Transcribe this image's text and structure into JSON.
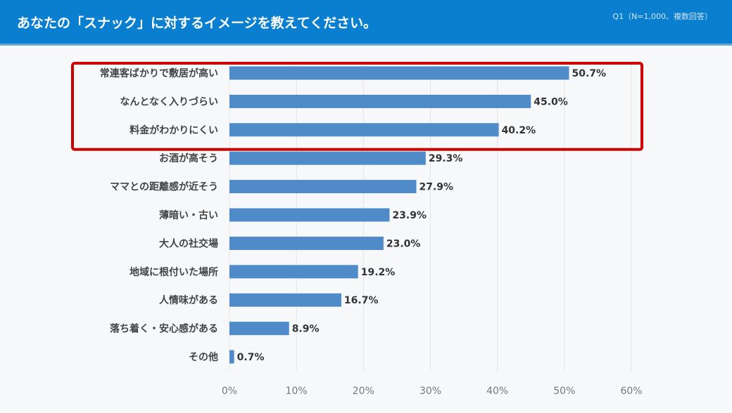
{
  "header": {
    "title": "あなたの「スナック」に対するイメージを教えてください。",
    "note": "Q1（N=1,000、複数回答）"
  },
  "chart_data": {
    "type": "bar",
    "orientation": "horizontal",
    "categories": [
      "常連客ばかりで敷居が高い",
      "なんとなく入りづらい",
      "料金がわかりにくい",
      "お酒が高そう",
      "ママとの距離感が近そう",
      "薄暗い・古い",
      "大人の社交場",
      "地域に根付いた場所",
      "人情味がある",
      "落ち着く・安心感がある",
      "その他"
    ],
    "values": [
      50.7,
      45.0,
      40.2,
      29.3,
      27.9,
      23.9,
      23.0,
      19.2,
      16.7,
      8.9,
      0.7
    ],
    "value_labels": [
      "50.7%",
      "45.0%",
      "40.2%",
      "29.3%",
      "27.9%",
      "23.9%",
      "23.0%",
      "19.2%",
      "16.7%",
      "8.9%",
      "0.7%"
    ],
    "xlim": [
      0,
      60
    ],
    "ticks": [
      "0%",
      "10%",
      "20%",
      "30%",
      "40%",
      "50%",
      "60%"
    ],
    "grid": true,
    "bar_color": "#4f8ac9",
    "highlight": {
      "categories": [
        "常連客ばかりで敷居が高い",
        "なんとなく入りづらい",
        "料金がわかりにくい"
      ],
      "color": "#cc0000"
    }
  }
}
